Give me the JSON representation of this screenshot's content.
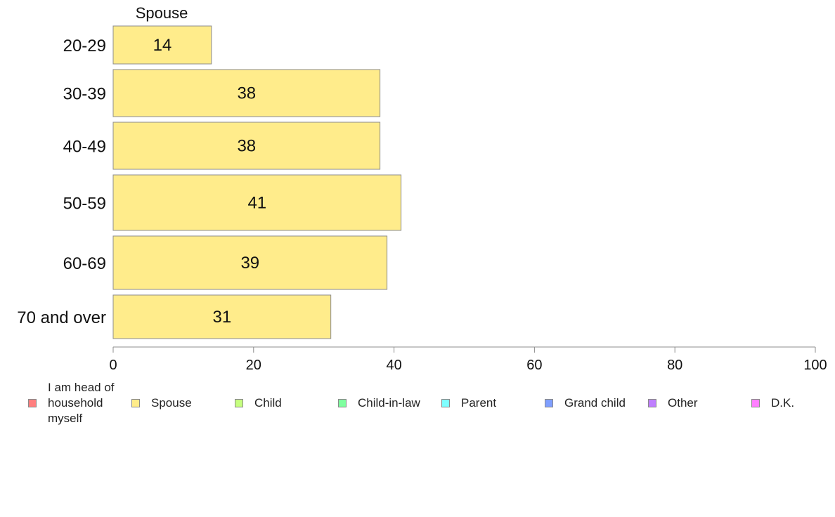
{
  "chart_data": {
    "type": "bar",
    "orientation": "horizontal",
    "panel_title": "Spouse",
    "categories": [
      "20-29",
      "30-39",
      "40-49",
      "50-59",
      "60-69",
      "70 and over"
    ],
    "values": [
      14,
      38,
      38,
      41,
      39,
      31
    ],
    "xlim": [
      0,
      100
    ],
    "xticks": [
      "0",
      "20",
      "40",
      "60",
      "80",
      "100"
    ],
    "bar_color": "#ffec8b",
    "grid": false,
    "legend": {
      "placement": "bottom",
      "items": [
        {
          "name": "I am head of household myself",
          "lines": [
            "I am head of",
            "household",
            "myself"
          ],
          "color": "#ff7f7f"
        },
        {
          "name": "Spouse",
          "lines": [
            "Spouse"
          ],
          "color": "#ffec8b"
        },
        {
          "name": "Child",
          "lines": [
            "Child"
          ],
          "color": "#c6ff7f"
        },
        {
          "name": "Child-in-law",
          "lines": [
            "Child-in-law"
          ],
          "color": "#7fff9f"
        },
        {
          "name": "Parent",
          "lines": [
            "Parent"
          ],
          "color": "#7fffff"
        },
        {
          "name": "Grand child",
          "lines": [
            "Grand child"
          ],
          "color": "#7f9fff"
        },
        {
          "name": "Other",
          "lines": [
            "Other"
          ],
          "color": "#bf7fff"
        },
        {
          "name": "D.K.",
          "lines": [
            "D.K."
          ],
          "color": "#ff7fff"
        }
      ]
    }
  }
}
